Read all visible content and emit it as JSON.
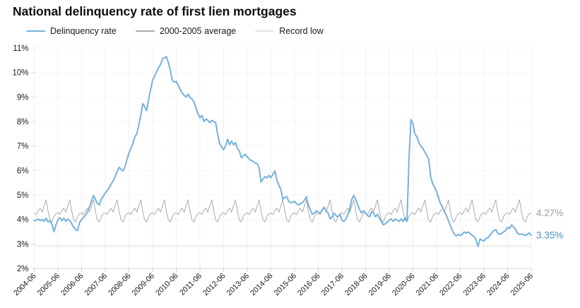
{
  "title": "National delinquency rate of first lien mortgages",
  "legend": {
    "items": [
      {
        "label": "Delinquency rate",
        "color": "#74b2dc",
        "thickness": 2.5
      },
      {
        "label": "2000-2005 average",
        "color": "#a9a9a9",
        "thickness": 1.5
      },
      {
        "label": "Record low",
        "color": "#e3e3e3",
        "thickness": 2
      }
    ]
  },
  "chart_data": {
    "type": "line",
    "title": "National delinquency rate of first lien mortgages",
    "xlabel": "",
    "ylabel": "",
    "x_start": "2004-06",
    "x_end": "2025-06",
    "frequency": "monthly",
    "x_tick_labels": [
      "2004-06",
      "2005-06",
      "2006-06",
      "2007-06",
      "2008-06",
      "2009-06",
      "2010-06",
      "2011-06",
      "2012-06",
      "2013-06",
      "2014-06",
      "2015-06",
      "2016-06",
      "2017-06",
      "2018-06",
      "2019-06",
      "2020-06",
      "2021-06",
      "2022-06",
      "2023-06",
      "2024-06",
      "2025-06"
    ],
    "ylim": [
      2,
      11
    ],
    "y_tick_step": 1,
    "y_tick_labels": [
      "2%",
      "3%",
      "4%",
      "5%",
      "6%",
      "7%",
      "8%",
      "9%",
      "10%",
      "11%"
    ],
    "grid": true,
    "legend_position": "top-left",
    "series": [
      {
        "name": "Delinquency rate",
        "color": "#74b2dc",
        "stroke_width": 2,
        "values": [
          3.95,
          3.97,
          4.02,
          3.95,
          4.0,
          3.92,
          4.05,
          3.9,
          3.95,
          3.8,
          3.5,
          3.78,
          4.0,
          4.08,
          3.95,
          4.05,
          3.92,
          4.02,
          3.95,
          3.82,
          3.68,
          3.58,
          3.55,
          3.88,
          4.0,
          4.08,
          4.18,
          4.32,
          4.52,
          4.75,
          4.98,
          4.82,
          4.65,
          4.6,
          4.82,
          4.95,
          5.08,
          5.18,
          5.3,
          5.45,
          5.58,
          5.75,
          5.95,
          6.13,
          6.05,
          5.98,
          6.15,
          6.45,
          6.71,
          6.9,
          7.1,
          7.38,
          7.5,
          7.86,
          8.25,
          8.73,
          8.6,
          8.44,
          8.92,
          9.3,
          9.69,
          9.85,
          10.03,
          10.2,
          10.32,
          10.56,
          10.6,
          10.65,
          10.41,
          10.07,
          9.69,
          9.6,
          9.64,
          9.48,
          9.31,
          9.16,
          9.07,
          9.0,
          9.12,
          8.97,
          8.92,
          8.8,
          8.55,
          8.32,
          8.15,
          8.25,
          8.0,
          8.1,
          8.05,
          7.95,
          8.05,
          8.0,
          7.95,
          7.48,
          7.1,
          6.95,
          6.85,
          7.0,
          7.28,
          7.05,
          7.2,
          7.05,
          7.14,
          6.9,
          6.8,
          6.52,
          6.6,
          6.66,
          6.55,
          6.47,
          6.4,
          6.38,
          6.3,
          6.28,
          6.1,
          5.52,
          5.65,
          5.75,
          5.7,
          5.8,
          5.7,
          5.85,
          5.98,
          5.6,
          5.4,
          5.23,
          4.83,
          4.9,
          4.94,
          4.75,
          4.68,
          4.7,
          4.74,
          4.64,
          4.59,
          4.65,
          4.69,
          4.79,
          4.93,
          4.59,
          4.4,
          4.21,
          4.26,
          4.36,
          4.3,
          4.26,
          4.4,
          4.5,
          4.35,
          4.26,
          4.02,
          4.11,
          4.26,
          4.15,
          4.11,
          4.21,
          3.96,
          3.92,
          4.02,
          4.2,
          4.45,
          4.83,
          4.98,
          4.83,
          4.59,
          4.4,
          4.26,
          4.36,
          4.26,
          4.16,
          4.11,
          4.31,
          4.26,
          4.11,
          4.21,
          4.05,
          3.92,
          3.78,
          3.82,
          3.9,
          3.97,
          4.02,
          3.92,
          4.02,
          3.97,
          3.92,
          4.02,
          3.92,
          4.07,
          3.92,
          6.45,
          8.08,
          7.91,
          7.48,
          7.38,
          7.14,
          7.0,
          6.9,
          6.76,
          6.61,
          6.47,
          5.75,
          5.46,
          5.32,
          5.12,
          4.88,
          4.64,
          4.5,
          4.31,
          4.16,
          3.95,
          3.75,
          3.55,
          3.4,
          3.33,
          3.39,
          3.35,
          3.39,
          3.49,
          3.44,
          3.49,
          3.42,
          3.35,
          3.3,
          3.17,
          2.9,
          3.2,
          3.15,
          3.12,
          3.23,
          3.25,
          3.35,
          3.45,
          3.54,
          3.59,
          3.44,
          3.39,
          3.44,
          3.49,
          3.55,
          3.68,
          3.63,
          3.78,
          3.7,
          3.59,
          3.44,
          3.39,
          3.4,
          3.39,
          3.35,
          3.39,
          3.45,
          3.35
        ],
        "last_value": 3.35
      },
      {
        "name": "2000-2005 average",
        "color": "#a9a9a9",
        "stroke_width": 1,
        "repeating_monthly_pattern_jan_to_dec": [
          4.35,
          3.98,
          3.9,
          4.12,
          4.24,
          4.27,
          4.2,
          4.36,
          4.46,
          4.3,
          4.56,
          4.8
        ],
        "last_value": 4.27
      },
      {
        "name": "Record low",
        "color": "#e3e3e3",
        "stroke_width": 1.2,
        "constant_value": 2.92
      }
    ],
    "annotations": [
      {
        "text": "4.27%",
        "series": "2000-2005 average",
        "color": "#9b9b9b"
      },
      {
        "text": "3.35%",
        "series": "Delinquency rate",
        "color": "#4a91c9"
      }
    ]
  },
  "colors": {
    "axis_line": "#d8d8d8",
    "tick": "#c9c9c9",
    "grid_vertical": "#f0f0f0",
    "grid_horizontal": "#f6f6f6",
    "axis_text": "#1a1a1a"
  }
}
